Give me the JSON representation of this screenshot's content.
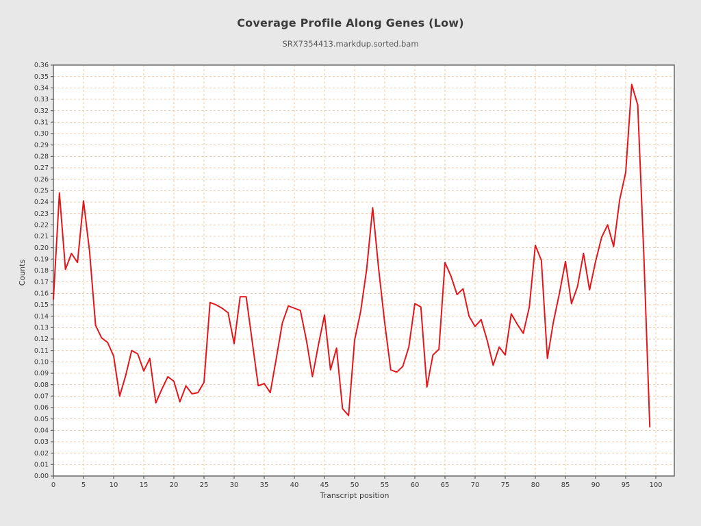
{
  "header": {
    "title": "Coverage Profile Along Genes (Low)",
    "subtitle": "SRX7354413.markdup.sorted.bam"
  },
  "colors": {
    "background": "#e8e8e8",
    "plot_background": "#ffffff",
    "line": "#e3161b",
    "grid": "#f0c9a2",
    "frame": "#5f5f5f",
    "tick": "#5f5f5f",
    "text": "#3a3a3a"
  },
  "chart_data": {
    "type": "line",
    "title": "Coverage Profile Along Genes (Low)",
    "subtitle": "SRX7354413.markdup.sorted.bam",
    "xlabel": "Transcript position",
    "ylabel": "Counts",
    "xlim": [
      0,
      103
    ],
    "ylim": [
      0,
      0.36
    ],
    "x_tick_interval": 5,
    "x_tick_max": 100,
    "y_tick_interval": 0.01,
    "grid": true,
    "legend_position": "none",
    "x_start": 0,
    "x_step": 1,
    "values": [
      0.155,
      0.248,
      0.181,
      0.195,
      0.187,
      0.241,
      0.197,
      0.132,
      0.121,
      0.117,
      0.105,
      0.07,
      0.088,
      0.11,
      0.107,
      0.092,
      0.103,
      0.064,
      0.076,
      0.087,
      0.083,
      0.065,
      0.079,
      0.072,
      0.073,
      0.082,
      0.152,
      0.15,
      0.147,
      0.143,
      0.116,
      0.157,
      0.157,
      0.118,
      0.079,
      0.081,
      0.073,
      0.103,
      0.134,
      0.149,
      0.147,
      0.145,
      0.119,
      0.087,
      0.115,
      0.141,
      0.093,
      0.112,
      0.059,
      0.053,
      0.119,
      0.144,
      0.181,
      0.235,
      0.181,
      0.134,
      0.093,
      0.091,
      0.096,
      0.113,
      0.151,
      0.148,
      0.078,
      0.106,
      0.111,
      0.187,
      0.175,
      0.159,
      0.164,
      0.14,
      0.131,
      0.137,
      0.119,
      0.097,
      0.113,
      0.106,
      0.142,
      0.133,
      0.125,
      0.148,
      0.202,
      0.189,
      0.103,
      0.135,
      0.16,
      0.188,
      0.151,
      0.166,
      0.195,
      0.163,
      0.188,
      0.209,
      0.22,
      0.201,
      0.242,
      0.266,
      0.343,
      0.325,
      0.195,
      0.043
    ]
  }
}
